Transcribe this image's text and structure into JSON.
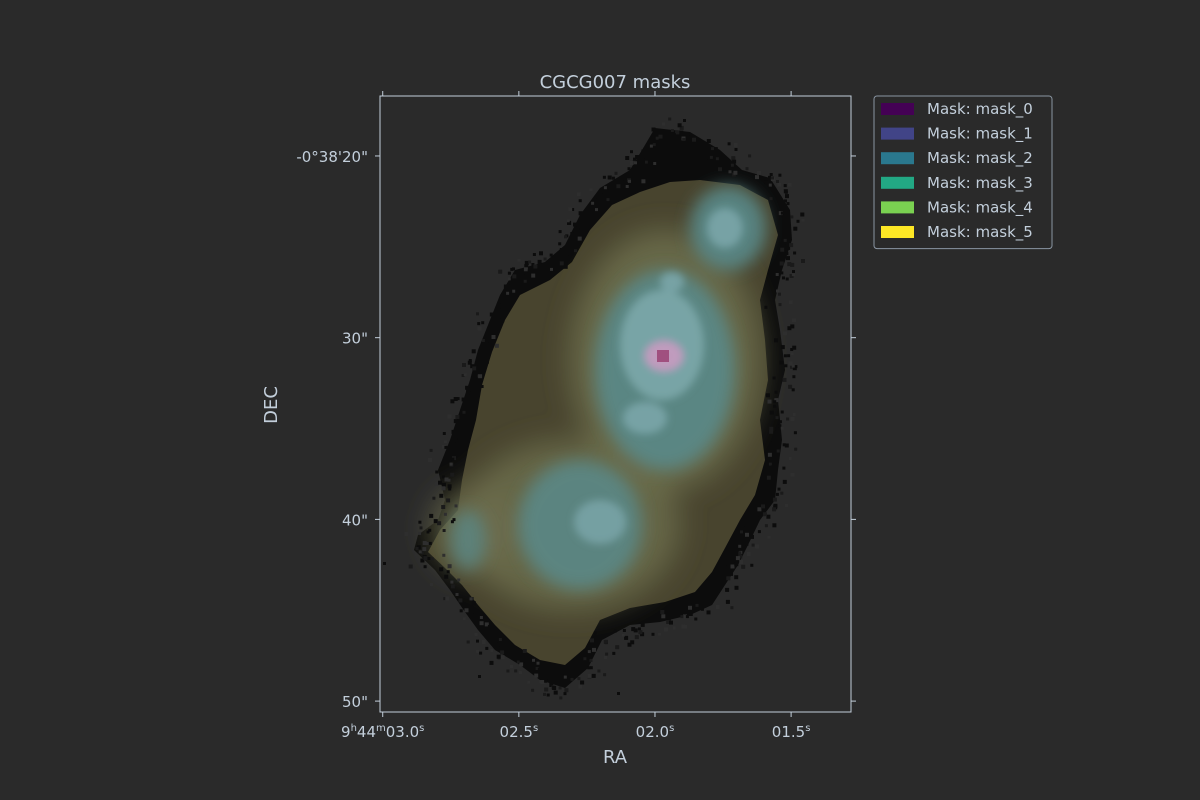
{
  "theme": {
    "background": "#2a2a2a",
    "text": "#c3cfdb",
    "axes": "#c3cfdb"
  },
  "chart_data": {
    "type": "heatmap",
    "title": "CGCG007 masks",
    "xlabel": "RA",
    "ylabel": "DEC",
    "x_ticks": [
      {
        "value": 3.0,
        "label": "9h44m03.0s"
      },
      {
        "value": 2.5,
        "label": "02.5s"
      },
      {
        "value": 2.0,
        "label": "02.0s"
      },
      {
        "value": 1.5,
        "label": "01.5s"
      }
    ],
    "y_ticks": [
      {
        "value": 20,
        "label": "-0°38'20\""
      },
      {
        "value": 30,
        "label": "30\""
      },
      {
        "value": 40,
        "label": "40\""
      },
      {
        "value": 50,
        "label": "50\""
      }
    ],
    "x_range_seconds": [
      3.01,
      1.28
    ],
    "y_range_arcsec": [
      16.7,
      50.6
    ],
    "legend": {
      "placement": "outside-top-right",
      "entries": [
        {
          "label": "Mask: mask_0",
          "color": "#440154"
        },
        {
          "label": "Mask: mask_1",
          "color": "#414487"
        },
        {
          "label": "Mask: mask_2",
          "color": "#2a788e"
        },
        {
          "label": "Mask: mask_3",
          "color": "#22a884"
        },
        {
          "label": "Mask: mask_4",
          "color": "#7ad151"
        },
        {
          "label": "Mask: mask_5",
          "color": "#fde725"
        }
      ]
    },
    "region_colors": {
      "halo": "#0c0c0c",
      "body": "#48442e",
      "mid": "#6d6e4d",
      "cyan": "#5a8a8a",
      "core": "#7aa5a8",
      "peak": "#c49bbf",
      "hot": "#a0507f"
    }
  }
}
